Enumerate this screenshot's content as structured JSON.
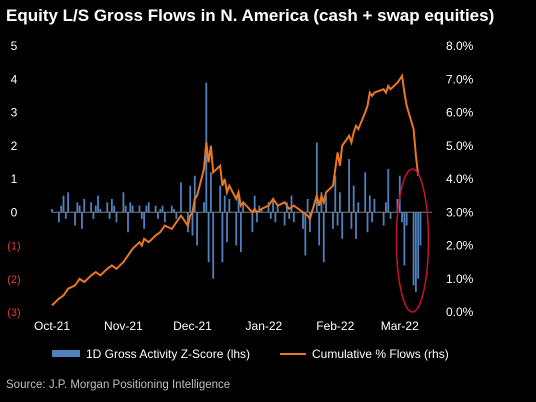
{
  "chart_data": {
    "type": "bar+line",
    "title": "Equity L/S Gross Flows in N. America (cash + swap equities)",
    "source": "Source: J.P. Morgan Positioning Intelligence",
    "x_ticks": [
      "Oct-21",
      "Nov-21",
      "Dec-21",
      "Jan-22",
      "Feb-22",
      "Mar-22"
    ],
    "x_range": [
      "2021-10-01",
      "2022-03-15"
    ],
    "y_left": {
      "ylim": [
        -3,
        5
      ],
      "ticks": [
        {
          "value": 5,
          "label": "5"
        },
        {
          "value": 4,
          "label": "4"
        },
        {
          "value": 3,
          "label": "3"
        },
        {
          "value": 2,
          "label": "2"
        },
        {
          "value": 1,
          "label": "1"
        },
        {
          "value": 0,
          "label": "0"
        },
        {
          "value": -1,
          "label": "(1)"
        },
        {
          "value": -2,
          "label": "(2)"
        },
        {
          "value": -3,
          "label": "(3)"
        }
      ]
    },
    "y_right": {
      "ylim": [
        0.0,
        8.0
      ],
      "ticks": [
        "8.0%",
        "7.0%",
        "6.0%",
        "5.0%",
        "4.0%",
        "3.0%",
        "2.0%",
        "1.0%",
        "0.0%"
      ]
    },
    "series": [
      {
        "name": "1D Gross Activity Z-Score (lhs)",
        "type": "bar",
        "axis": "left",
        "color": "#4f81bd",
        "points": [
          [
            "2021-10-01",
            0.1
          ],
          [
            "2021-10-04",
            -0.3
          ],
          [
            "2021-10-05",
            0.2
          ],
          [
            "2021-10-06",
            0.5
          ],
          [
            "2021-10-07",
            -0.2
          ],
          [
            "2021-10-08",
            0.6
          ],
          [
            "2021-10-11",
            -0.4
          ],
          [
            "2021-10-12",
            0.3
          ],
          [
            "2021-10-13",
            0.2
          ],
          [
            "2021-10-14",
            -0.5
          ],
          [
            "2021-10-15",
            0.4
          ],
          [
            "2021-10-18",
            0.3
          ],
          [
            "2021-10-19",
            -0.2
          ],
          [
            "2021-10-20",
            0.2
          ],
          [
            "2021-10-21",
            0.5
          ],
          [
            "2021-10-22",
            0.1
          ],
          [
            "2021-10-25",
            0.3
          ],
          [
            "2021-10-26",
            -0.2
          ],
          [
            "2021-10-27",
            0.4
          ],
          [
            "2021-10-28",
            0.2
          ],
          [
            "2021-10-29",
            -0.3
          ],
          [
            "2021-11-01",
            0.6
          ],
          [
            "2021-11-02",
            0.2
          ],
          [
            "2021-11-03",
            -0.6
          ],
          [
            "2021-11-04",
            0.3
          ],
          [
            "2021-11-05",
            0.2
          ],
          [
            "2021-11-08",
            0.2
          ],
          [
            "2021-11-09",
            -0.2
          ],
          [
            "2021-11-10",
            -0.5
          ],
          [
            "2021-11-11",
            0.2
          ],
          [
            "2021-11-12",
            0.3
          ],
          [
            "2021-11-15",
            0.2
          ],
          [
            "2021-11-16",
            -0.2
          ],
          [
            "2021-11-17",
            0.1
          ],
          [
            "2021-11-18",
            0.2
          ],
          [
            "2021-11-19",
            -0.3
          ],
          [
            "2021-11-22",
            0.2
          ],
          [
            "2021-11-23",
            0.1
          ],
          [
            "2021-11-24",
            -0.2
          ],
          [
            "2021-11-26",
            0.9
          ],
          [
            "2021-11-29",
            -0.6
          ],
          [
            "2021-11-30",
            0.8
          ],
          [
            "2021-12-01",
            -0.7
          ],
          [
            "2021-12-02",
            1.1
          ],
          [
            "2021-12-03",
            -1.0
          ],
          [
            "2021-12-06",
            0.3
          ],
          [
            "2021-12-07",
            3.9
          ],
          [
            "2021-12-08",
            -1.5
          ],
          [
            "2021-12-09",
            1.2
          ],
          [
            "2021-12-10",
            -2.0
          ],
          [
            "2021-12-13",
            0.8
          ],
          [
            "2021-12-14",
            -1.5
          ],
          [
            "2021-12-15",
            0.5
          ],
          [
            "2021-12-16",
            -0.9
          ],
          [
            "2021-12-17",
            0.4
          ],
          [
            "2021-12-20",
            -1.0
          ],
          [
            "2021-12-21",
            0.6
          ],
          [
            "2021-12-22",
            -1.2
          ],
          [
            "2021-12-23",
            0.3
          ],
          [
            "2021-12-27",
            -0.6
          ],
          [
            "2021-12-28",
            0.5
          ],
          [
            "2021-12-29",
            -0.3
          ],
          [
            "2021-12-30",
            0.2
          ],
          [
            "2021-12-31",
            0.1
          ],
          [
            "2022-01-03",
            0.3
          ],
          [
            "2022-01-04",
            -0.2
          ],
          [
            "2022-01-05",
            0.4
          ],
          [
            "2022-01-06",
            -0.3
          ],
          [
            "2022-01-07",
            0.2
          ],
          [
            "2022-01-10",
            -0.4
          ],
          [
            "2022-01-11",
            0.3
          ],
          [
            "2022-01-12",
            -0.2
          ],
          [
            "2022-01-13",
            0.5
          ],
          [
            "2022-01-14",
            -0.3
          ],
          [
            "2022-01-18",
            -0.5
          ],
          [
            "2022-01-19",
            -1.3
          ],
          [
            "2022-01-20",
            0.4
          ],
          [
            "2022-01-21",
            -0.6
          ],
          [
            "2022-01-24",
            2.1
          ],
          [
            "2022-01-25",
            -1.0
          ],
          [
            "2022-01-26",
            0.6
          ],
          [
            "2022-01-27",
            -1.5
          ],
          [
            "2022-01-28",
            0.5
          ],
          [
            "2022-01-31",
            -0.5
          ],
          [
            "2022-02-01",
            1.1
          ],
          [
            "2022-02-02",
            -0.4
          ],
          [
            "2022-02-03",
            0.6
          ],
          [
            "2022-02-04",
            -0.8
          ],
          [
            "2022-02-07",
            1.6
          ],
          [
            "2022-02-08",
            -0.5
          ],
          [
            "2022-02-09",
            0.8
          ],
          [
            "2022-02-10",
            -0.8
          ],
          [
            "2022-02-11",
            0.3
          ],
          [
            "2022-02-14",
            1.2
          ],
          [
            "2022-02-15",
            -0.6
          ],
          [
            "2022-02-16",
            0.5
          ],
          [
            "2022-02-17",
            -0.3
          ],
          [
            "2022-02-18",
            0.4
          ],
          [
            "2022-02-22",
            -0.4
          ],
          [
            "2022-02-23",
            0.3
          ],
          [
            "2022-02-24",
            1.3
          ],
          [
            "2022-02-25",
            -0.2
          ],
          [
            "2022-02-28",
            0.4
          ],
          [
            "2022-03-01",
            1.1
          ],
          [
            "2022-03-02",
            -0.3
          ],
          [
            "2022-03-03",
            -1.6
          ],
          [
            "2022-03-04",
            -0.4
          ],
          [
            "2022-03-07",
            -2.2
          ],
          [
            "2022-03-08",
            -2.4
          ],
          [
            "2022-03-09",
            -2.0
          ],
          [
            "2022-03-10",
            -1.0
          ]
        ]
      },
      {
        "name": "Cumulative % Flows (rhs)",
        "type": "line",
        "axis": "right",
        "color": "#e87722",
        "points": [
          [
            "2021-10-01",
            0.2
          ],
          [
            "2021-10-04",
            0.4
          ],
          [
            "2021-10-06",
            0.5
          ],
          [
            "2021-10-08",
            0.7
          ],
          [
            "2021-10-11",
            0.8
          ],
          [
            "2021-10-13",
            1.0
          ],
          [
            "2021-10-15",
            0.9
          ],
          [
            "2021-10-18",
            1.1
          ],
          [
            "2021-10-20",
            1.2
          ],
          [
            "2021-10-22",
            1.1
          ],
          [
            "2021-10-25",
            1.3
          ],
          [
            "2021-10-27",
            1.4
          ],
          [
            "2021-10-29",
            1.3
          ],
          [
            "2021-11-01",
            1.5
          ],
          [
            "2021-11-03",
            1.7
          ],
          [
            "2021-11-05",
            1.9
          ],
          [
            "2021-11-08",
            2.1
          ],
          [
            "2021-11-09",
            2.0
          ],
          [
            "2021-11-10",
            2.2
          ],
          [
            "2021-11-12",
            2.1
          ],
          [
            "2021-11-15",
            2.3
          ],
          [
            "2021-11-17",
            2.4
          ],
          [
            "2021-11-19",
            2.6
          ],
          [
            "2021-11-22",
            2.5
          ],
          [
            "2021-11-24",
            2.7
          ],
          [
            "2021-11-26",
            2.9
          ],
          [
            "2021-11-29",
            2.6
          ],
          [
            "2021-11-30",
            2.9
          ],
          [
            "2021-12-01",
            3.0
          ],
          [
            "2021-12-02",
            3.4
          ],
          [
            "2021-12-03",
            3.5
          ],
          [
            "2021-12-06",
            4.3
          ],
          [
            "2021-12-07",
            5.1
          ],
          [
            "2021-12-08",
            4.5
          ],
          [
            "2021-12-09",
            5.0
          ],
          [
            "2021-12-10",
            4.2
          ],
          [
            "2021-12-13",
            4.4
          ],
          [
            "2021-12-14",
            3.8
          ],
          [
            "2021-12-15",
            4.0
          ],
          [
            "2021-12-16",
            3.6
          ],
          [
            "2021-12-17",
            3.8
          ],
          [
            "2021-12-20",
            3.4
          ],
          [
            "2021-12-21",
            3.6
          ],
          [
            "2021-12-22",
            3.2
          ],
          [
            "2021-12-23",
            3.3
          ],
          [
            "2021-12-27",
            3.0
          ],
          [
            "2021-12-28",
            3.1
          ],
          [
            "2021-12-29",
            3.0
          ],
          [
            "2021-12-31",
            3.1
          ],
          [
            "2022-01-03",
            3.2
          ],
          [
            "2022-01-05",
            3.4
          ],
          [
            "2022-01-07",
            3.2
          ],
          [
            "2022-01-10",
            3.3
          ],
          [
            "2022-01-12",
            3.1
          ],
          [
            "2022-01-14",
            3.2
          ],
          [
            "2022-01-18",
            3.0
          ],
          [
            "2022-01-20",
            2.9
          ],
          [
            "2022-01-21",
            2.8
          ],
          [
            "2022-01-24",
            3.5
          ],
          [
            "2022-01-25",
            3.2
          ],
          [
            "2022-01-26",
            3.5
          ],
          [
            "2022-01-27",
            3.3
          ],
          [
            "2022-01-28",
            3.6
          ],
          [
            "2022-01-31",
            3.8
          ],
          [
            "2022-02-01",
            4.3
          ],
          [
            "2022-02-02",
            4.8
          ],
          [
            "2022-02-03",
            4.4
          ],
          [
            "2022-02-04",
            5.0
          ],
          [
            "2022-02-07",
            5.3
          ],
          [
            "2022-02-08",
            5.1
          ],
          [
            "2022-02-09",
            5.4
          ],
          [
            "2022-02-10",
            5.6
          ],
          [
            "2022-02-11",
            5.5
          ],
          [
            "2022-02-14",
            6.0
          ],
          [
            "2022-02-15",
            6.2
          ],
          [
            "2022-02-16",
            6.6
          ],
          [
            "2022-02-17",
            6.5
          ],
          [
            "2022-02-18",
            6.6
          ],
          [
            "2022-02-22",
            6.7
          ],
          [
            "2022-02-23",
            6.6
          ],
          [
            "2022-02-24",
            6.8
          ],
          [
            "2022-02-25",
            6.7
          ],
          [
            "2022-02-28",
            6.9
          ],
          [
            "2022-03-01",
            7.0
          ],
          [
            "2022-03-02",
            7.1
          ],
          [
            "2022-03-03",
            6.6
          ],
          [
            "2022-03-04",
            6.2
          ],
          [
            "2022-03-07",
            5.5
          ],
          [
            "2022-03-08",
            4.7
          ],
          [
            "2022-03-09",
            4.1
          ]
        ]
      }
    ],
    "annotation": {
      "shape": "ellipse",
      "color": "#c8102e"
    },
    "legend_placement": "bottom",
    "grid": false
  }
}
